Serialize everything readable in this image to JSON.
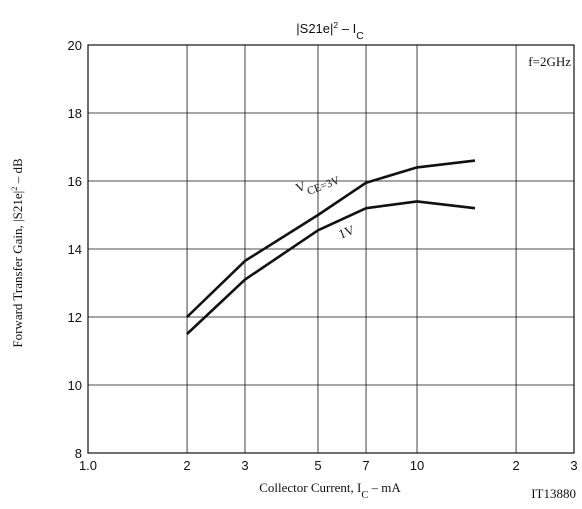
{
  "chart_data": {
    "type": "line",
    "title": {
      "main": "|S21e|",
      "sup": "2",
      "rest": " – I",
      "sub": "C"
    },
    "x_label": {
      "main": "Collector Current, I",
      "sub": "C",
      "rest": " – mA"
    },
    "y_label": {
      "main": "Forward Transfer Gain, |S21e|",
      "sup": "2",
      "rest": " – dB"
    },
    "annotations": [
      "f=2GHz",
      "IT13880"
    ],
    "x": [
      2,
      3,
      5,
      7,
      10,
      15
    ],
    "series": [
      {
        "name": "VCE=3V",
        "color": "#111111",
        "values": [
          12.0,
          13.65,
          15.0,
          15.95,
          16.4,
          16.6
        ]
      },
      {
        "name": "1V",
        "color": "#111111",
        "values": [
          11.5,
          13.1,
          14.55,
          15.2,
          15.4,
          15.2
        ]
      }
    ],
    "xlim": [
      1,
      30
    ],
    "x_log": true,
    "xticks": [
      {
        "value": 1,
        "label": "1.0"
      },
      2,
      3,
      5,
      7,
      10,
      {
        "value": 20,
        "label": "2"
      },
      {
        "value": 30,
        "label": "3"
      }
    ],
    "ylim": [
      8,
      20
    ],
    "yticks": [
      8,
      10,
      12,
      14,
      16,
      18,
      20
    ],
    "grid": true
  }
}
